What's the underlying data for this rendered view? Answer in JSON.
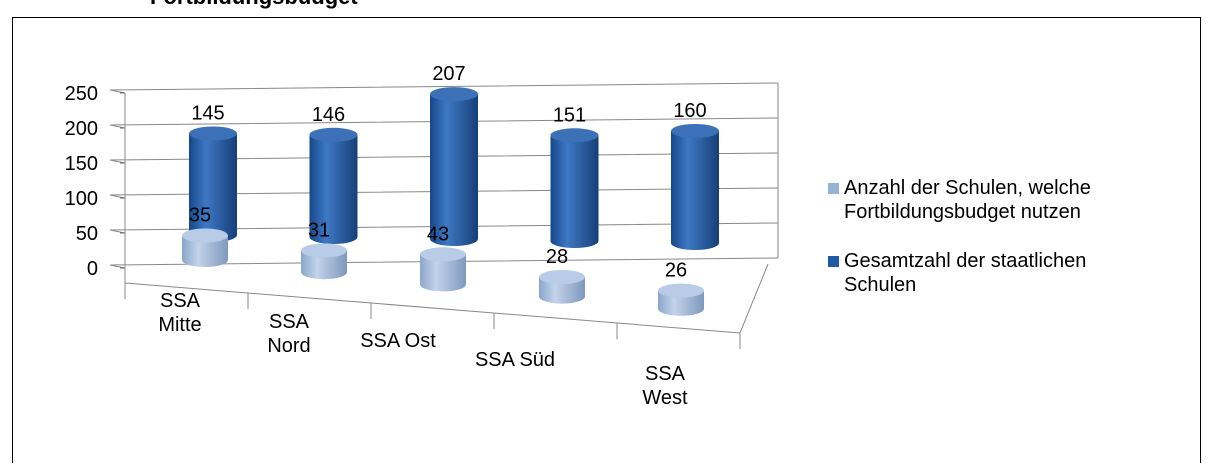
{
  "page_title_fragment": "Fortbildungsbudget",
  "chart_data": {
    "type": "bar",
    "style": "3d-cylinder",
    "categories": [
      "SSA Mitte",
      "SSA Nord",
      "SSA Ost",
      "SSA Süd",
      "SSA West"
    ],
    "category_label_lines": [
      [
        "SSA",
        "Mitte"
      ],
      [
        "SSA",
        "Nord"
      ],
      [
        "SSA Ost"
      ],
      [
        "SSA Süd"
      ],
      [
        "SSA",
        "West"
      ]
    ],
    "series": [
      {
        "name": "Anzahl der Schulen, welche Fortbildungsbudget nutzen",
        "legend_lines": [
          "Anzahl der Schulen, welche",
          "Fortbildungsbudget nutzen"
        ],
        "values": [
          35,
          31,
          43,
          28,
          26
        ],
        "color": "#95b3d7"
      },
      {
        "name": "Gesamtzahl der staatlichen Schulen",
        "legend_lines": [
          "Gesamtzahl der staatlichen",
          "Schulen"
        ],
        "values": [
          145,
          146,
          207,
          151,
          160
        ],
        "color": "#1f5aa6"
      }
    ],
    "ylim": [
      0,
      250
    ],
    "yticks": [
      0,
      50,
      100,
      150,
      200,
      250
    ],
    "grid": true,
    "data_labels": true,
    "legend_position": "right"
  }
}
